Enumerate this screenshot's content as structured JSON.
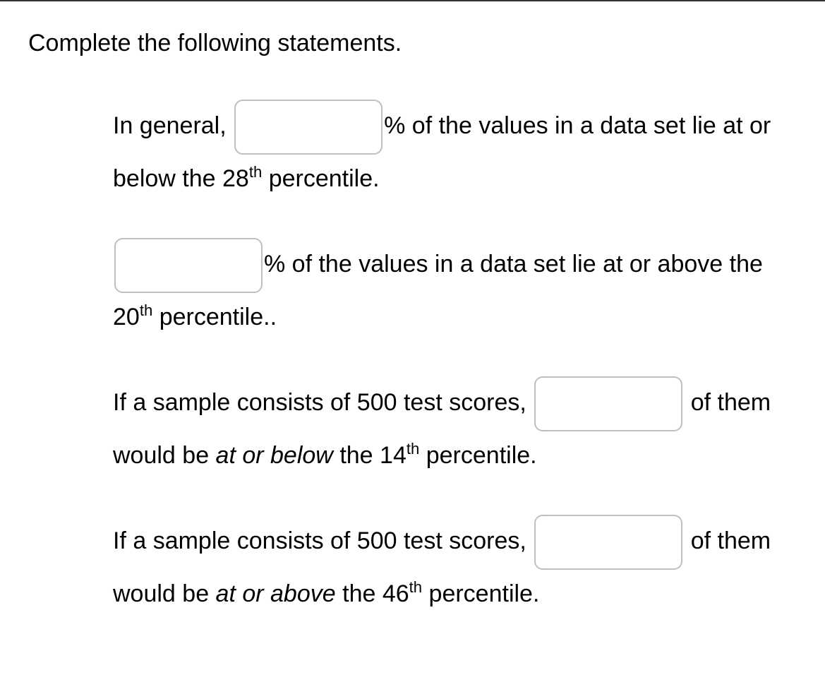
{
  "instruction": "Complete the following statements.",
  "s1": {
    "a": "In general, ",
    "b": "% of the values in a data set lie at or below the 28",
    "sup": "th",
    "c": " percentile."
  },
  "s2": {
    "a": "% of the values in a data set lie at or above the 20",
    "sup": "th",
    "b": " percentile.."
  },
  "s3": {
    "a": "If a sample consists of 500 test scores, ",
    "b": " of them would be ",
    "em": "at or below",
    "c": " the 14",
    "sup": "th",
    "d": " percentile."
  },
  "s4": {
    "a": "If a sample consists of 500 test scores, ",
    "b": " of them would be ",
    "em": "at or above",
    "c": " the 46",
    "sup": "th",
    "d": " percentile."
  }
}
